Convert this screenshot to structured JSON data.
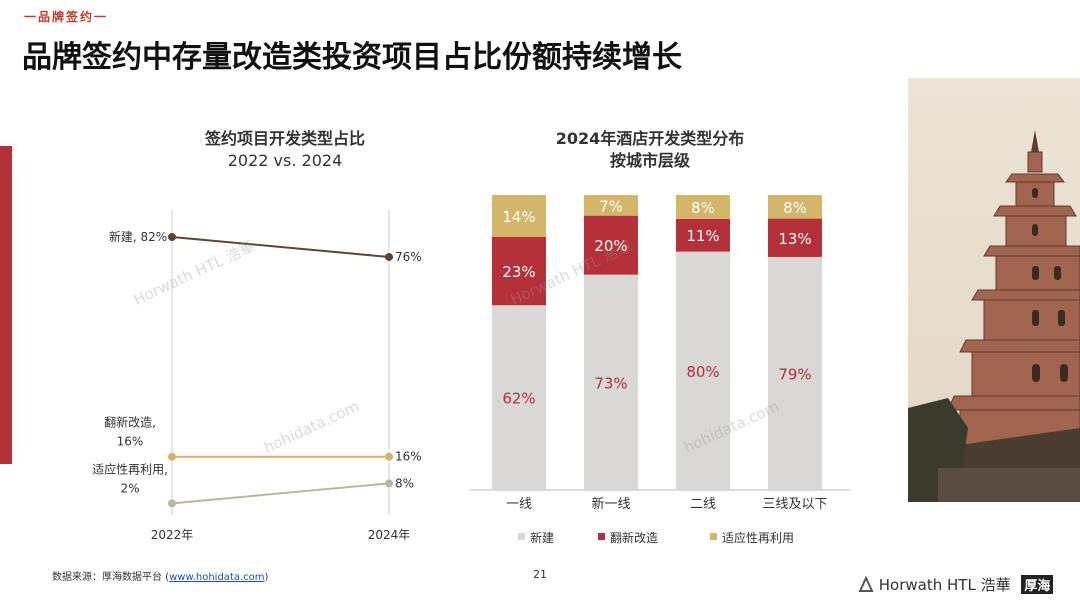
{
  "header": {
    "kicker": "一品牌签约一",
    "title": "品牌签约中存量改造类投资项目占比份额持续增长"
  },
  "left_chart": {
    "title": "签约项目开发类型占比",
    "subtitle": "2022 vs. 2024"
  },
  "right_chart": {
    "title": "2024年酒店开发类型分布",
    "subtitle": "按城市层级"
  },
  "colors": {
    "new": "#d9d8d6",
    "renovation": "#b5313a",
    "adaptive": "#d4b66a",
    "accent": "#b5313a"
  },
  "chart_data": [
    {
      "type": "line",
      "x": [
        "2022年",
        "2024年"
      ],
      "series": [
        {
          "name": "新建",
          "values": [
            82,
            76
          ],
          "label_left": "新建, 82%",
          "labels_right": "76%",
          "color": "#5a4636"
        },
        {
          "name": "翻新改造",
          "values": [
            16,
            16
          ],
          "label_left": "翻新改造,\n16%",
          "labels_right": "16%",
          "color": "#d8b26a"
        },
        {
          "name": "适应性再利用",
          "values": [
            2,
            8
          ],
          "label_left": "适应性再利用,\n2%",
          "labels_right": "8%",
          "color": "#b6b9a0"
        }
      ],
      "ylim": [
        0,
        100
      ]
    },
    {
      "type": "bar",
      "stacked": true,
      "categories": [
        "一线",
        "新一线",
        "二线",
        "三线及以下"
      ],
      "series": [
        {
          "name": "新建",
          "values": [
            62,
            73,
            80,
            79
          ]
        },
        {
          "name": "翻新改造",
          "values": [
            23,
            20,
            11,
            13
          ]
        },
        {
          "name": "适应性再利用",
          "values": [
            14,
            7,
            8,
            8
          ]
        }
      ],
      "ylim": [
        0,
        100
      ],
      "legend": "bottom"
    }
  ],
  "legend": [
    "新建",
    "翻新改造",
    "适应性再利用"
  ],
  "footer": {
    "source_label": "数据来源：厚海数据平台 (",
    "source_link": "www.hohidata.com",
    "source_close": ")",
    "page": "21",
    "logo_text": "Horwath HTL 浩華",
    "logo2": "厚海"
  },
  "watermarks": {
    "horwath": "Horwath HTL 浩華",
    "hohi": "hohidata.com"
  }
}
